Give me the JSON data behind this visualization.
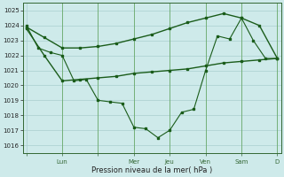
{
  "background_color": "#ceeaea",
  "grid_color": "#aacece",
  "line_color": "#1a5c1a",
  "xlabel": "Pression niveau de la mer( hPa )",
  "ylim": [
    1015.5,
    1025.5
  ],
  "yticks": [
    1016,
    1017,
    1018,
    1019,
    1020,
    1021,
    1022,
    1023,
    1024,
    1025
  ],
  "day_labels": [
    "",
    "Lun",
    "",
    "Mer",
    "Jeu",
    "Ven",
    "Sam",
    "D"
  ],
  "day_tick_positions": [
    0,
    1,
    2,
    3,
    4,
    5,
    6,
    7
  ],
  "vline_positions": [
    1,
    2,
    3,
    4,
    5,
    6,
    7
  ],
  "xlim": [
    -0.1,
    7.1
  ],
  "line1_x": [
    0,
    0.33,
    0.67,
    1.0,
    1.33,
    1.67,
    2.0,
    2.33,
    2.67,
    3.0,
    3.33,
    3.67,
    4.0,
    4.33,
    4.67,
    5.0,
    5.33,
    5.67,
    6.0,
    6.33,
    6.67,
    7.0
  ],
  "line1_y": [
    1024.0,
    1022.5,
    1022.2,
    1022.0,
    1020.3,
    1020.4,
    1019.0,
    1018.9,
    1018.8,
    1017.2,
    1017.1,
    1016.5,
    1017.0,
    1018.2,
    1018.4,
    1021.0,
    1023.3,
    1023.1,
    1024.5,
    1023.0,
    1021.8,
    1021.8
  ],
  "line2_x": [
    0,
    0.5,
    1.0,
    1.5,
    2.0,
    2.5,
    3.0,
    3.5,
    4.0,
    4.5,
    5.0,
    5.5,
    6.0,
    6.5,
    7.0
  ],
  "line2_y": [
    1023.9,
    1023.2,
    1022.5,
    1022.5,
    1022.6,
    1022.8,
    1023.1,
    1023.4,
    1023.8,
    1024.2,
    1024.5,
    1024.8,
    1024.5,
    1024.0,
    1021.8
  ],
  "line3_x": [
    0,
    0.5,
    1.0,
    1.5,
    2.0,
    2.5,
    3.0,
    3.5,
    4.0,
    4.5,
    5.0,
    5.5,
    6.0,
    6.5,
    7.0
  ],
  "line3_y": [
    1023.8,
    1022.0,
    1020.3,
    1020.4,
    1020.5,
    1020.6,
    1020.8,
    1020.9,
    1021.0,
    1021.1,
    1021.3,
    1021.5,
    1021.6,
    1021.7,
    1021.8
  ],
  "figsize": [
    3.2,
    2.0
  ],
  "dpi": 100
}
